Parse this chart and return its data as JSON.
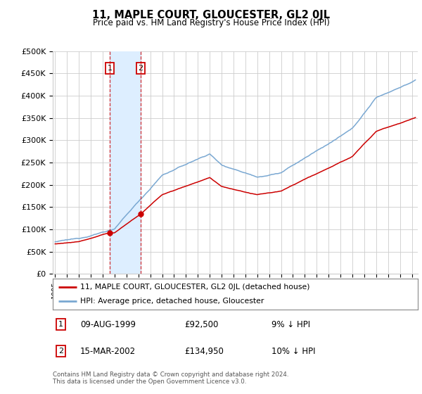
{
  "title": "11, MAPLE COURT, GLOUCESTER, GL2 0JL",
  "subtitle": "Price paid vs. HM Land Registry's House Price Index (HPI)",
  "ylabel_ticks": [
    "£0",
    "£50K",
    "£100K",
    "£150K",
    "£200K",
    "£250K",
    "£300K",
    "£350K",
    "£400K",
    "£450K",
    "£500K"
  ],
  "ymax": 500000,
  "xmin": 1994.8,
  "xmax": 2025.5,
  "sale1_date": 1999.6,
  "sale1_price": 92500,
  "sale2_date": 2002.2,
  "sale2_price": 134950,
  "legend_line1": "11, MAPLE COURT, GLOUCESTER, GL2 0JL (detached house)",
  "legend_line2": "HPI: Average price, detached house, Gloucester",
  "annotation1_date": "09-AUG-1999",
  "annotation1_price": "£92,500",
  "annotation1_hpi": "9% ↓ HPI",
  "annotation2_date": "15-MAR-2002",
  "annotation2_price": "£134,950",
  "annotation2_hpi": "10% ↓ HPI",
  "footnote": "Contains HM Land Registry data © Crown copyright and database right 2024.\nThis data is licensed under the Open Government Licence v3.0.",
  "red_color": "#cc0000",
  "blue_color": "#7aa8d2",
  "shade_color": "#ddeeff",
  "grid_color": "#cccccc",
  "background_color": "#ffffff"
}
